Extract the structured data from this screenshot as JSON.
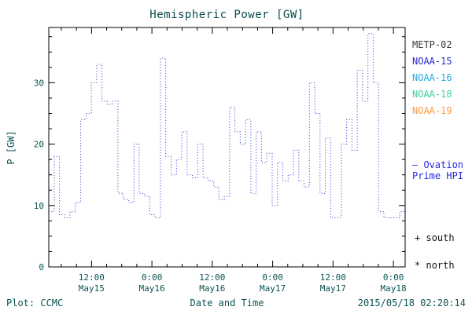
{
  "footer": {
    "left": "Plot: CCMC",
    "center": "Date and Time",
    "right": "2015/05/18 02:20:14"
  },
  "legend": {
    "satellites": [
      {
        "label": "METP-02",
        "color": "#3a3a3a"
      },
      {
        "label": "NOAA-15",
        "color": "#2525cf"
      },
      {
        "label": "NOAA-16",
        "color": "#29a8e0"
      },
      {
        "label": "NOAA-18",
        "color": "#3fcf9f"
      },
      {
        "label": "NOAA-19",
        "color": "#ff9a3c"
      }
    ],
    "series_note": {
      "line1": "— Ovation",
      "line2": "Prime HPI",
      "color": "#2a2ae0"
    },
    "markers": [
      {
        "symbol": "+",
        "label": "south"
      },
      {
        "symbol": "*",
        "label": "north"
      }
    ]
  },
  "chart_data": {
    "type": "line",
    "style": "step-dotted",
    "title": "Hemispheric Power [GW]",
    "xlabel": "Date and Time",
    "ylabel": "P [GW]",
    "line_color": "#2233cc",
    "axis_color": "#000000",
    "text_color": "#0b5353",
    "grid": false,
    "legend_position": "right",
    "xlim_hours_from_may15": [
      3.5,
      74.33
    ],
    "ylim": [
      0,
      39
    ],
    "yticks": [
      0,
      10,
      20,
      30
    ],
    "xticks": [
      {
        "hour": 12,
        "time": "12:00",
        "date": "May15"
      },
      {
        "hour": 24,
        "time": "0:00",
        "date": "May16"
      },
      {
        "hour": 36,
        "time": "12:00",
        "date": "May16"
      },
      {
        "hour": 48,
        "time": "0:00",
        "date": "May17"
      },
      {
        "hour": 60,
        "time": "12:00",
        "date": "May17"
      },
      {
        "hour": 72,
        "time": "0:00",
        "date": "May18"
      }
    ],
    "hpi_gw": [
      9,
      18,
      8.5,
      8,
      9,
      10.5,
      24,
      25,
      30,
      33,
      27,
      26.5,
      27,
      12,
      11,
      10.5,
      20,
      12,
      11.5,
      8.5,
      8,
      34,
      18,
      15,
      17.5,
      22,
      15,
      14.5,
      20,
      14.5,
      14,
      13,
      11,
      11.5,
      26,
      22,
      20,
      24,
      12,
      22,
      17,
      18.5,
      10,
      17,
      14,
      15,
      19,
      14,
      13,
      30,
      25,
      12,
      21,
      8,
      8,
      20,
      24,
      19,
      32,
      27,
      38,
      30,
      9,
      8,
      8,
      8,
      9
    ]
  }
}
